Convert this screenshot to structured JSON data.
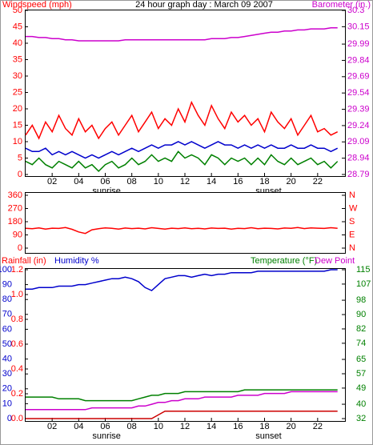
{
  "chart_data": [
    {
      "type": "line",
      "title": "24 hour graph day : March 09 2007",
      "y_label": "Windspeed (mph)",
      "y2_label": "Barometer (in.)",
      "x": [
        0,
        0.5,
        1,
        1.5,
        2,
        2.5,
        3,
        3.5,
        4,
        4.5,
        5,
        5.5,
        6,
        6.5,
        7,
        7.5,
        8,
        8.5,
        9,
        9.5,
        10,
        10.5,
        11,
        11.5,
        12,
        12.5,
        13,
        13.5,
        14,
        14.5,
        15,
        15.5,
        16,
        16.5,
        17,
        17.5,
        18,
        18.5,
        19,
        19.5,
        20,
        20.5,
        21,
        21.5,
        22,
        22.5,
        23,
        23.5
      ],
      "xlim": [
        0,
        24
      ],
      "xticks": [
        {
          "value": 2,
          "label": "02"
        },
        {
          "value": 4,
          "label": "04"
        },
        {
          "value": 6,
          "label": "06"
        },
        {
          "value": 8,
          "label": "08"
        },
        10,
        12,
        14,
        16,
        18,
        20,
        22
      ],
      "annotations": [
        {
          "text": "sunrise",
          "x": 6.1
        },
        {
          "text": "sunset",
          "x": 18.3
        }
      ],
      "ylim": [
        0,
        50
      ],
      "yticks": [
        0,
        5,
        10,
        15,
        20,
        25,
        30,
        35,
        40,
        45,
        50
      ],
      "y2lim": [
        28.79,
        30.3
      ],
      "y2ticks": [
        28.79,
        28.94,
        29.09,
        29.24,
        29.39,
        29.54,
        29.69,
        29.84,
        29.99,
        30.15,
        30.3
      ],
      "series": [
        {
          "color": "#ff0000",
          "values": [
            12,
            15,
            11,
            16,
            13,
            18,
            14,
            12,
            17,
            13,
            15,
            11,
            14,
            16,
            12,
            15,
            18,
            13,
            16,
            19,
            14,
            17,
            15,
            20,
            16,
            22,
            18,
            15,
            21,
            17,
            14,
            19,
            16,
            18,
            15,
            17,
            13,
            19,
            16,
            14,
            17,
            12,
            15,
            18,
            13,
            14,
            12,
            13
          ]
        },
        {
          "color": "#0000cc",
          "values": [
            8,
            7,
            7,
            8,
            6,
            7,
            6,
            7,
            6,
            5,
            6,
            5,
            6,
            7,
            6,
            7,
            8,
            7,
            8,
            9,
            8,
            9,
            9,
            10,
            9,
            10,
            9,
            8,
            9,
            10,
            9,
            9,
            8,
            9,
            8,
            9,
            8,
            9,
            8,
            8,
            9,
            8,
            8,
            9,
            8,
            8,
            7,
            8
          ]
        },
        {
          "color": "#008000",
          "values": [
            4,
            3,
            5,
            3,
            2,
            4,
            3,
            2,
            4,
            2,
            3,
            1,
            3,
            4,
            2,
            3,
            5,
            3,
            4,
            6,
            4,
            5,
            4,
            7,
            5,
            6,
            5,
            3,
            6,
            5,
            3,
            5,
            4,
            5,
            3,
            5,
            3,
            6,
            4,
            3,
            5,
            3,
            4,
            5,
            3,
            4,
            2,
            4
          ]
        },
        {
          "color": "#cc00cc",
          "axis": "y2",
          "values": [
            30.06,
            30.06,
            30.05,
            30.05,
            30.04,
            30.04,
            30.03,
            30.03,
            30.02,
            30.02,
            30.02,
            30.02,
            30.02,
            30.02,
            30.02,
            30.03,
            30.03,
            30.03,
            30.03,
            30.03,
            30.03,
            30.03,
            30.03,
            30.03,
            30.03,
            30.03,
            30.03,
            30.03,
            30.04,
            30.04,
            30.04,
            30.05,
            30.05,
            30.06,
            30.07,
            30.08,
            30.09,
            30.1,
            30.1,
            30.11,
            30.11,
            30.12,
            30.12,
            30.13,
            30.13,
            30.13,
            30.14,
            30.14
          ]
        }
      ]
    },
    {
      "type": "line",
      "x": [
        0,
        0.5,
        1,
        1.5,
        2,
        2.5,
        3,
        3.5,
        4,
        4.5,
        5,
        5.5,
        6,
        6.5,
        7,
        7.5,
        8,
        8.5,
        9,
        9.5,
        10,
        10.5,
        11,
        11.5,
        12,
        12.5,
        13,
        13.5,
        14,
        14.5,
        15,
        15.5,
        16,
        16.5,
        17,
        17.5,
        18,
        18.5,
        19,
        19.5,
        20,
        20.5,
        21,
        21.5,
        22,
        22.5,
        23,
        23.5
      ],
      "xlim": [
        0,
        24
      ],
      "ylim": [
        0,
        360
      ],
      "yticks": [
        0,
        90,
        180,
        270,
        360
      ],
      "y2lim": [
        0,
        360
      ],
      "y2ticks": [
        {
          "value": 0,
          "label": "N"
        },
        {
          "value": 90,
          "label": "E"
        },
        {
          "value": 180,
          "label": "S"
        },
        {
          "value": 270,
          "label": "W"
        },
        {
          "value": 360,
          "label": "N"
        }
      ],
      "series": [
        {
          "color": "#ff0000",
          "values": [
            135,
            132,
            138,
            130,
            136,
            134,
            140,
            128,
            110,
            100,
            125,
            132,
            138,
            135,
            130,
            137,
            133,
            136,
            131,
            139,
            134,
            130,
            136,
            133,
            138,
            132,
            135,
            131,
            137,
            134,
            136,
            130,
            135,
            133,
            139,
            132,
            136,
            134,
            131,
            137,
            135,
            140,
            133,
            138,
            136,
            134,
            139,
            135
          ]
        }
      ]
    },
    {
      "type": "line",
      "y3_label": "Rainfall (in)",
      "y_label": "Humidity %",
      "y2_label": "Temperature (°F)",
      "y2_label_b": "Dew Point",
      "x": [
        0,
        0.5,
        1,
        1.5,
        2,
        2.5,
        3,
        3.5,
        4,
        4.5,
        5,
        5.5,
        6,
        6.5,
        7,
        7.5,
        8,
        8.5,
        9,
        9.5,
        10,
        10.5,
        11,
        11.5,
        12,
        12.5,
        13,
        13.5,
        14,
        14.5,
        15,
        15.5,
        16,
        16.5,
        17,
        17.5,
        18,
        18.5,
        19,
        19.5,
        20,
        20.5,
        21,
        21.5,
        22,
        22.5,
        23,
        23.5
      ],
      "xlim": [
        0,
        24
      ],
      "xticks": [
        {
          "value": 2,
          "label": "02"
        },
        {
          "value": 4,
          "label": "04"
        },
        {
          "value": 6,
          "label": "06"
        },
        {
          "value": 8,
          "label": "08"
        },
        10,
        12,
        14,
        16,
        18,
        20,
        22
      ],
      "annotations": [
        {
          "text": "sunrise",
          "x": 6.1
        },
        {
          "text": "sunset",
          "x": 18.3
        }
      ],
      "ylim": [
        0,
        100
      ],
      "yticks": [
        0,
        10,
        20,
        30,
        40,
        50,
        60,
        70,
        80,
        90,
        100
      ],
      "y3lim": [
        0,
        1.2
      ],
      "y3ticks": [
        {
          "value": 0,
          "label": "0.0"
        },
        0.2,
        0.4,
        0.6,
        0.8,
        {
          "value": 1,
          "label": "1.0"
        },
        1.2
      ],
      "y2lim": [
        32,
        115
      ],
      "y2ticks": [
        32,
        40,
        49,
        57,
        65,
        74,
        82,
        90,
        98,
        107,
        115
      ],
      "series": [
        {
          "color": "#0000cc",
          "values": [
            87,
            87,
            88,
            88,
            88,
            89,
            89,
            89,
            90,
            90,
            91,
            92,
            93,
            94,
            94,
            95,
            94,
            92,
            88,
            86,
            90,
            94,
            95,
            96,
            96,
            95,
            96,
            97,
            96,
            97,
            97,
            98,
            98,
            98,
            98,
            99,
            99,
            99,
            99,
            99,
            99,
            99,
            99,
            99,
            99,
            99,
            100,
            100
          ]
        },
        {
          "color": "#008000",
          "axis": "y2",
          "values": [
            44,
            44,
            44,
            44,
            44,
            43,
            43,
            43,
            43,
            42,
            42,
            42,
            42,
            42,
            42,
            42,
            42,
            43,
            44,
            45,
            45,
            46,
            46,
            46,
            47,
            47,
            47,
            47,
            47,
            47,
            47,
            47,
            47,
            48,
            48,
            48,
            48,
            48,
            48,
            48,
            48,
            48,
            48,
            48,
            48,
            48,
            48,
            48
          ]
        },
        {
          "color": "#cc00cc",
          "axis": "y2",
          "values": [
            37,
            37,
            37,
            37,
            37,
            37,
            37,
            37,
            37,
            37,
            38,
            38,
            38,
            38,
            38,
            38,
            38,
            39,
            39,
            40,
            41,
            41,
            42,
            42,
            43,
            43,
            43,
            44,
            44,
            44,
            44,
            44,
            45,
            45,
            45,
            45,
            46,
            46,
            46,
            46,
            47,
            47,
            47,
            47,
            47,
            47,
            47,
            47
          ]
        },
        {
          "color": "#cc0000",
          "axis": "y3",
          "values": [
            0,
            0,
            0,
            0,
            0,
            0,
            0,
            0,
            0,
            0,
            0,
            0,
            0,
            0,
            0,
            0,
            0,
            0,
            0,
            0,
            0.03,
            0.06,
            0.06,
            0.06,
            0.06,
            0.06,
            0.06,
            0.06,
            0.06,
            0.06,
            0.06,
            0.06,
            0.06,
            0.06,
            0.06,
            0.06,
            0.06,
            0.06,
            0.06,
            0.06,
            0.06,
            0.06,
            0.06,
            0.06,
            0.06,
            0.06,
            0.06,
            0.06
          ]
        }
      ]
    }
  ]
}
